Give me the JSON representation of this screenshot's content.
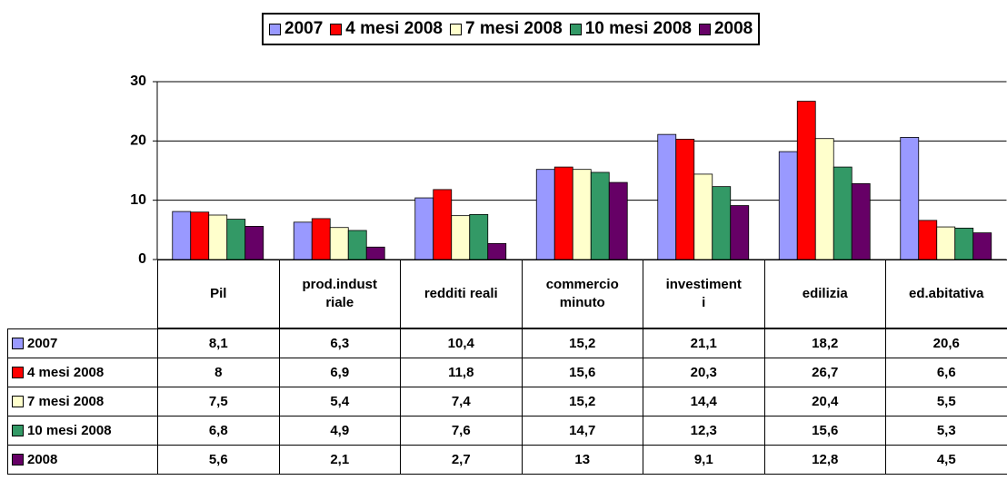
{
  "chart_data": {
    "type": "bar",
    "categories": [
      "Pil",
      "prod.indust\nriale",
      "redditi reali",
      "commercio\nminuto",
      "investiment\ni",
      "edilizia",
      "ed.abitativa"
    ],
    "series": [
      {
        "name": "2007",
        "color": "#9999ff",
        "values": [
          8.1,
          6.3,
          10.4,
          15.2,
          21.1,
          18.2,
          20.6
        ],
        "value_labels": [
          "8,1",
          "6,3",
          "10,4",
          "15,2",
          "21,1",
          "18,2",
          "20,6"
        ]
      },
      {
        "name": "4 mesi 2008",
        "color": "#ff0000",
        "values": [
          8,
          6.9,
          11.8,
          15.6,
          20.3,
          26.7,
          6.6
        ],
        "value_labels": [
          "8",
          "6,9",
          "11,8",
          "15,6",
          "20,3",
          "26,7",
          "6,6"
        ]
      },
      {
        "name": "7 mesi 2008",
        "color": "#ffffcc",
        "values": [
          7.5,
          5.4,
          7.4,
          15.2,
          14.4,
          20.4,
          5.5
        ],
        "value_labels": [
          "7,5",
          "5,4",
          "7,4",
          "15,2",
          "14,4",
          "20,4",
          "5,5"
        ]
      },
      {
        "name": "10 mesi 2008",
        "color": "#339966",
        "values": [
          6.8,
          4.9,
          7.6,
          14.7,
          12.3,
          15.6,
          5.3
        ],
        "value_labels": [
          "6,8",
          "4,9",
          "7,6",
          "14,7",
          "12,3",
          "15,6",
          "5,3"
        ]
      },
      {
        "name": "2008",
        "color": "#660066",
        "values": [
          5.6,
          2.1,
          2.7,
          13,
          9.1,
          12.8,
          4.5
        ],
        "value_labels": [
          "5,6",
          "2,1",
          "2,7",
          "13",
          "9,1",
          "12,8",
          "4,5"
        ]
      }
    ],
    "ylim": [
      0,
      30
    ],
    "yticks": [
      0,
      10,
      20,
      30
    ],
    "grid": true,
    "legend": "top",
    "data_table": true
  }
}
